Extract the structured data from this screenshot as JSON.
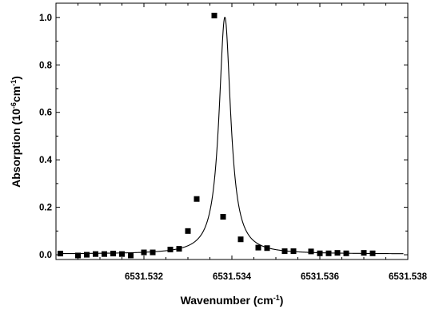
{
  "chart_data": {
    "type": "scatter",
    "title": "",
    "xlabel": {
      "base": "Wavenumber (cm",
      "sup": "-1",
      "tail": ")"
    },
    "ylabel": {
      "base": "Absorption (10",
      "sup1": "-6",
      "mid": "cm",
      "sup2": "-1",
      "tail": ")"
    },
    "xlim": [
      6531.53,
      6531.538
    ],
    "ylim": [
      -0.02,
      1.06
    ],
    "x_ticks": [
      6531.532,
      6531.534,
      6531.536,
      6531.538
    ],
    "x_tick_labels": [
      "6531.532",
      "6531.534",
      "6531.536",
      "6531.538"
    ],
    "y_ticks": [
      0.0,
      0.2,
      0.4,
      0.6,
      0.8,
      1.0
    ],
    "y_tick_labels": [
      "0.0",
      "0.2",
      "0.4",
      "0.6",
      "0.8",
      "1.0"
    ],
    "grid": false,
    "series": [
      {
        "marker": "square",
        "x": [
          6531.5301,
          6531.5305,
          6531.5307,
          6531.5309,
          6531.5311,
          6531.5313,
          6531.5315,
          6531.5317,
          6531.532,
          6531.5322,
          6531.5326,
          6531.5328,
          6531.533,
          6531.5332,
          6531.5336,
          6531.5338,
          6531.5342,
          6531.5346,
          6531.5348,
          6531.5352,
          6531.5354,
          6531.5358,
          6531.536,
          6531.5362,
          6531.5364,
          6531.5366,
          6531.537,
          6531.5372
        ],
        "y": [
          0.005,
          -0.003,
          0.0,
          0.003,
          0.003,
          0.005,
          0.003,
          -0.003,
          0.01,
          0.01,
          0.022,
          0.025,
          0.1,
          0.235,
          1.008,
          0.16,
          0.065,
          0.03,
          0.028,
          0.015,
          0.015,
          0.014,
          0.006,
          0.006,
          0.008,
          0.006,
          0.008,
          0.006
        ]
      },
      {
        "type": "line",
        "fit": "lorentzian",
        "center": 6531.53384,
        "amplitude": 0.998,
        "hwhm": 0.00016,
        "baseline": 0.003
      }
    ]
  }
}
